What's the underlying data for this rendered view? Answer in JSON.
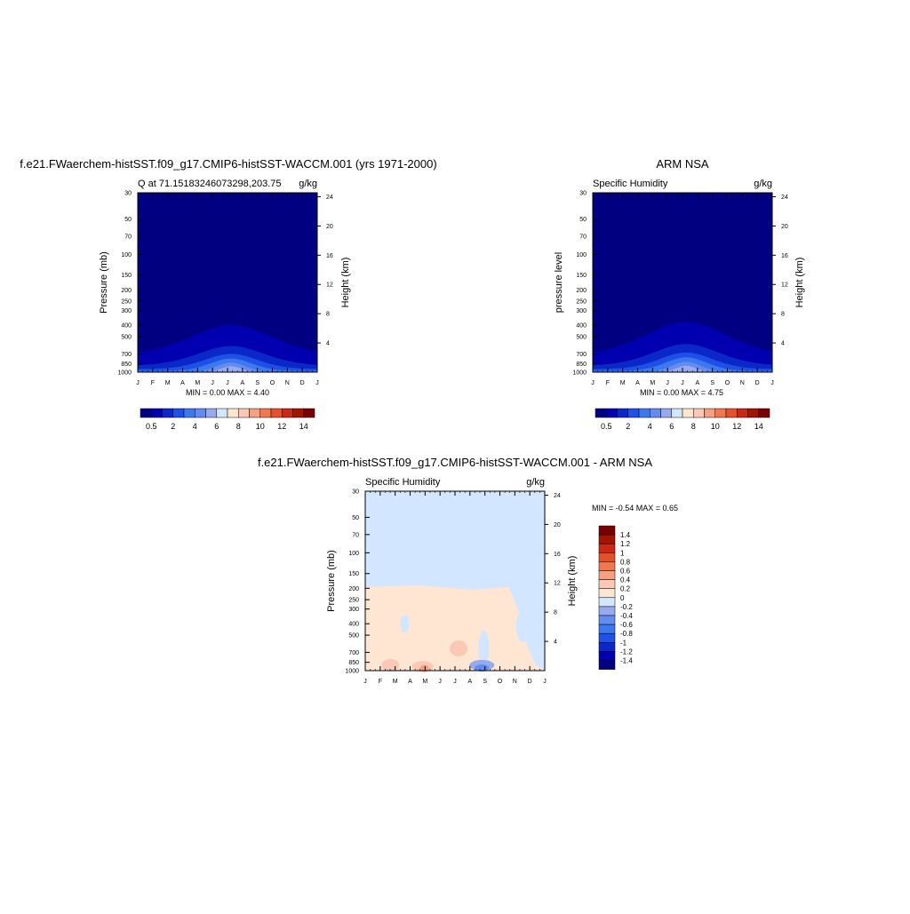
{
  "colors": {
    "q_levels": [
      "#000080",
      "#0000b0",
      "#0a28c8",
      "#1e50e6",
      "#3c78f0",
      "#648cf0",
      "#96aaf0",
      "#d2e6ff",
      "#ffe6d2",
      "#fac8b4",
      "#f5a082",
      "#f07850",
      "#e65028",
      "#c82814",
      "#a01400",
      "#780000"
    ],
    "diff_levels": [
      "#000080",
      "#0000b0",
      "#0a28c8",
      "#1e50e6",
      "#3c78f0",
      "#648cf0",
      "#96aaf0",
      "#d2e6ff",
      "#ffe6d2",
      "#fac8b4",
      "#f5a082",
      "#f07850",
      "#e65028",
      "#c82814",
      "#a01400",
      "#780000"
    ]
  },
  "chart_data": [
    {
      "type": "heatmap",
      "title": "f.e21.FWaerchem-histSST.f09_g17.CMIP6-histSST-WACCM.001 (yrs 1971-2000)",
      "subtitle_left": "Q at 71.15183246073298,203.75",
      "subtitle_right": "g/kg",
      "ylabel": "Pressure (mb)",
      "ylabel_right": "Height (km)",
      "x_ticks": [
        "J",
        "F",
        "M",
        "A",
        "M",
        "J",
        "J",
        "A",
        "S",
        "O",
        "N",
        "D",
        "J"
      ],
      "y_ticks": [
        "30",
        "50",
        "70",
        "100",
        "150",
        "200",
        "250",
        "300",
        "400",
        "500",
        "700",
        "850",
        "1000"
      ],
      "y_right_ticks": [
        "24",
        "20",
        "16",
        "12",
        "8",
        "4"
      ],
      "stats": "MIN =   0.00 MAX =   4.40",
      "min": 0.0,
      "max": 4.4,
      "colorbar_labels": [
        "0.5",
        "2",
        "4",
        "6",
        "8",
        "10",
        "12",
        "14"
      ],
      "colorbar": "horizontal"
    },
    {
      "type": "heatmap",
      "title": "ARM NSA",
      "subtitle_left": "Specific Humidity",
      "subtitle_right": "g/kg",
      "ylabel": "pressure level",
      "ylabel_right": "Height (km)",
      "x_ticks": [
        "J",
        "F",
        "M",
        "A",
        "M",
        "J",
        "J",
        "A",
        "S",
        "O",
        "N",
        "D",
        "J"
      ],
      "y_ticks": [
        "30",
        "50",
        "70",
        "100",
        "150",
        "200",
        "250",
        "300",
        "400",
        "500",
        "700",
        "850",
        "1000"
      ],
      "y_right_ticks": [
        "24",
        "20",
        "16",
        "12",
        "8",
        "4"
      ],
      "stats": "MIN =   0.00 MAX =   4.75",
      "min": 0.0,
      "max": 4.75,
      "colorbar_labels": [
        "0.5",
        "2",
        "4",
        "6",
        "8",
        "10",
        "12",
        "14"
      ],
      "colorbar": "horizontal"
    },
    {
      "type": "heatmap",
      "title": "f.e21.FWaerchem-histSST.f09_g17.CMIP6-histSST-WACCM.001 - ARM NSA",
      "subtitle_left": "Specific Humidity",
      "subtitle_right": "g/kg",
      "ylabel": "Pressure (mb)",
      "ylabel_right": "Height (km)",
      "x_ticks": [
        "J",
        "F",
        "M",
        "A",
        "M",
        "J",
        "J",
        "A",
        "S",
        "O",
        "N",
        "D",
        "J"
      ],
      "y_ticks": [
        "30",
        "50",
        "70",
        "100",
        "150",
        "200",
        "250",
        "300",
        "400",
        "500",
        "700",
        "850",
        "1000"
      ],
      "y_right_ticks": [
        "24",
        "20",
        "16",
        "12",
        "8",
        "4"
      ],
      "stats": "MIN =  -0.54 MAX =   0.65",
      "min": -0.54,
      "max": 0.65,
      "colorbar_labels": [
        "1.4",
        "1.2",
        "1",
        "0.8",
        "0.6",
        "0.4",
        "0.2",
        "0",
        "-0.2",
        "-0.4",
        "-0.6",
        "-0.8",
        "-1",
        "-1.2",
        "-1.4"
      ],
      "colorbar": "vertical"
    }
  ]
}
